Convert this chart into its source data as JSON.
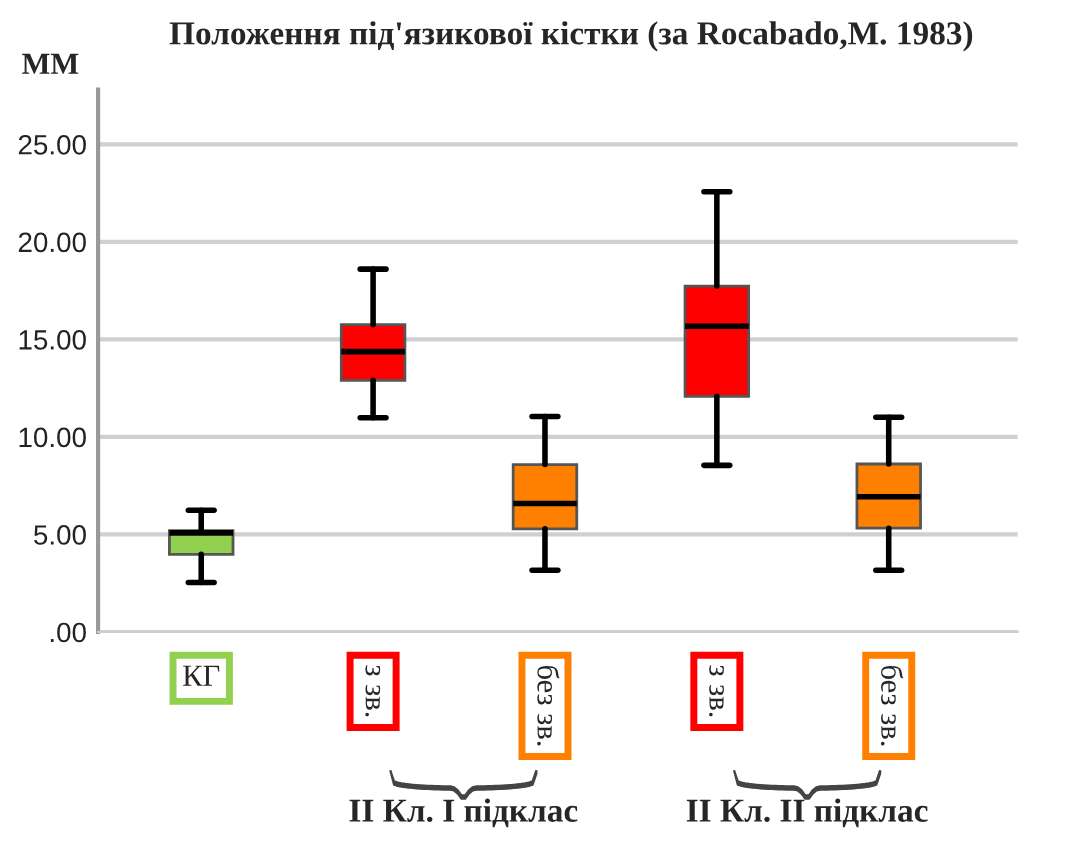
{
  "chart_data": {
    "type": "box",
    "title": "Положення під'язикової кістки (за Rocabado,M. 1983)",
    "ylabel": "ММ",
    "categories": [
      "КГ",
      "з зв.",
      "без зв.",
      "з зв.",
      "без зв."
    ],
    "colors": [
      "#92d050",
      "#ff0000",
      "#ff8000",
      "#ff0000",
      "#ff8000"
    ],
    "boxes": [
      {
        "low": 2.54,
        "q1": 3.98,
        "median": 5.08,
        "q3": 5.2,
        "high": 6.24
      },
      {
        "low": 10.98,
        "q1": 12.9,
        "median": 14.37,
        "q3": 15.75,
        "high": 18.6
      },
      {
        "low": 3.16,
        "q1": 5.29,
        "median": 6.59,
        "q3": 8.58,
        "high": 11.05
      },
      {
        "low": 8.54,
        "q1": 12.08,
        "median": 15.67,
        "q3": 17.73,
        "high": 22.57
      },
      {
        "low": 3.16,
        "q1": 5.32,
        "median": 6.93,
        "q3": 8.61,
        "high": 11.01
      }
    ],
    "ylim": [
      0,
      27.8
    ],
    "yticks": [
      {
        "value": 0,
        "label": ".00"
      },
      {
        "value": 5,
        "label": "5.00"
      },
      {
        "value": 10,
        "label": "10.00"
      },
      {
        "value": 15,
        "label": "15.00"
      },
      {
        "value": 20,
        "label": "20.00"
      },
      {
        "value": 25,
        "label": "25.00"
      }
    ],
    "grid": "y",
    "annotations": [
      "II Кл. I підклас",
      "II Кл. II підклас"
    ]
  }
}
